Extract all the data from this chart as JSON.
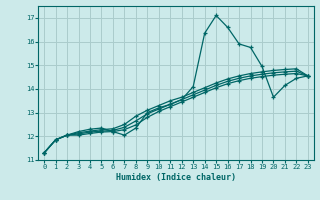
{
  "xlabel": "Humidex (Indice chaleur)",
  "bg_color": "#cceaea",
  "grid_color": "#aacccc",
  "line_color": "#006666",
  "xlim": [
    -0.5,
    23.5
  ],
  "ylim": [
    11.0,
    17.5
  ],
  "yticks": [
    11,
    12,
    13,
    14,
    15,
    16,
    17
  ],
  "xticks": [
    0,
    1,
    2,
    3,
    4,
    5,
    6,
    7,
    8,
    9,
    10,
    11,
    12,
    13,
    14,
    15,
    16,
    17,
    18,
    19,
    20,
    21,
    22,
    23
  ],
  "s1_x": [
    0,
    1,
    2,
    3,
    4,
    5,
    6,
    7,
    8,
    9,
    10,
    11,
    12,
    13,
    14,
    15,
    16,
    17,
    18,
    19,
    20,
    21,
    22,
    23
  ],
  "s1_y": [
    11.3,
    11.85,
    12.05,
    12.2,
    12.3,
    12.35,
    12.2,
    12.05,
    12.35,
    13.0,
    13.2,
    13.35,
    13.55,
    14.1,
    16.35,
    17.1,
    16.6,
    15.9,
    15.75,
    14.95,
    13.65,
    14.15,
    14.45,
    14.55
  ],
  "s2_x": [
    0,
    1,
    2,
    3,
    4,
    5,
    6,
    7,
    8,
    9,
    10,
    11,
    12,
    13,
    14,
    15,
    16,
    17,
    18,
    19,
    20,
    21,
    22,
    23
  ],
  "s2_y": [
    11.3,
    11.85,
    12.05,
    12.15,
    12.22,
    12.28,
    12.32,
    12.5,
    12.85,
    13.1,
    13.3,
    13.5,
    13.65,
    13.85,
    14.05,
    14.25,
    14.42,
    14.55,
    14.65,
    14.72,
    14.78,
    14.82,
    14.85,
    14.55
  ],
  "s3_x": [
    0,
    1,
    2,
    3,
    4,
    5,
    6,
    7,
    8,
    9,
    10,
    11,
    12,
    13,
    14,
    15,
    16,
    17,
    18,
    19,
    20,
    21,
    22,
    23
  ],
  "s3_y": [
    11.3,
    11.85,
    12.05,
    12.1,
    12.18,
    12.22,
    12.25,
    12.38,
    12.65,
    12.95,
    13.15,
    13.35,
    13.55,
    13.75,
    13.95,
    14.15,
    14.32,
    14.45,
    14.55,
    14.62,
    14.68,
    14.72,
    14.75,
    14.55
  ],
  "s4_x": [
    0,
    1,
    2,
    3,
    4,
    5,
    6,
    7,
    8,
    9,
    10,
    11,
    12,
    13,
    14,
    15,
    16,
    17,
    18,
    19,
    20,
    21,
    22,
    23
  ],
  "s4_y": [
    11.3,
    11.85,
    12.05,
    12.05,
    12.12,
    12.18,
    12.2,
    12.28,
    12.48,
    12.8,
    13.05,
    13.25,
    13.45,
    13.65,
    13.85,
    14.05,
    14.22,
    14.35,
    14.45,
    14.52,
    14.58,
    14.62,
    14.65,
    14.55
  ]
}
